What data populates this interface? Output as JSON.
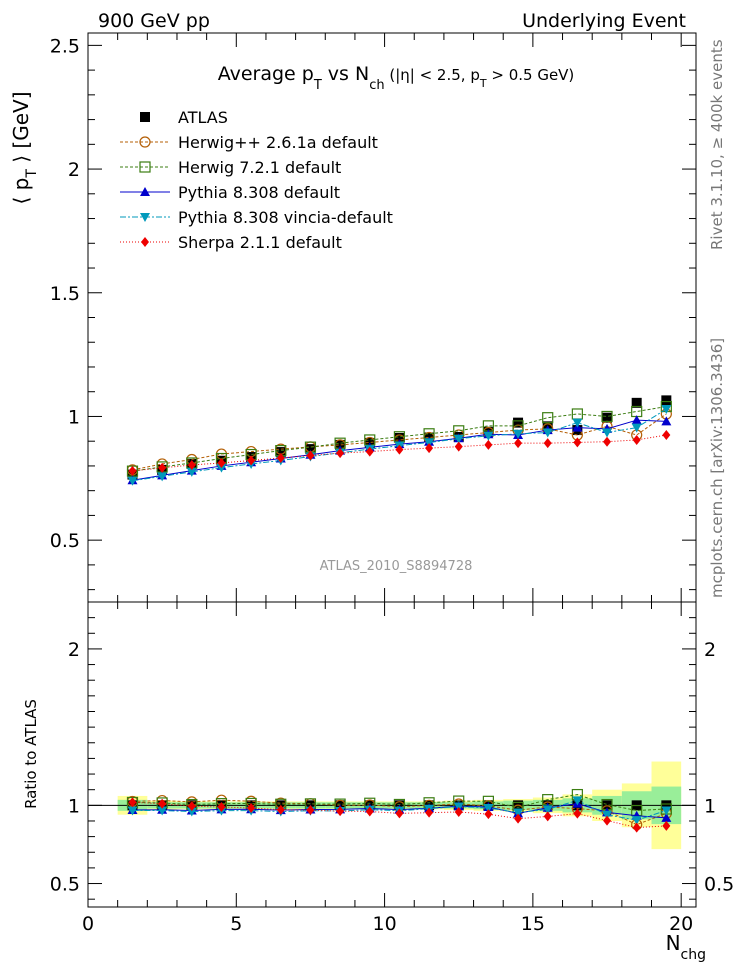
{
  "header": {
    "left": "900 GeV pp",
    "right": "Underlying Event"
  },
  "side": {
    "rivet": "Rivet 3.1.10, ≥ 400k events",
    "mcplots": "mcplots.cern.ch [arXiv:1306.3436]"
  },
  "chart_data": {
    "type": "line",
    "title_parts": {
      "a": "Average p",
      "sub_t": "T",
      "b": " vs N",
      "sub_ch": "ch",
      "c": " (|η| < 2.5, p",
      "sub_t2": "T",
      "d": " > 0.5 GeV)"
    },
    "analysis": "ATLAS_2010_S8894728",
    "ylabel": {
      "a": "⟨ p",
      "sub": "T",
      "b": " ⟩ [GeV]"
    },
    "ratio_ylabel": "Ratio to ATLAS",
    "xlabel": {
      "a": "N",
      "sub": "chg"
    },
    "xlim": [
      0,
      20.5
    ],
    "ylim": [
      0.25,
      2.55
    ],
    "ratio_ylim": [
      0.35,
      2.3
    ],
    "x_ticks": [
      "0",
      "5",
      "10",
      "15",
      "20"
    ],
    "y_ticks": [
      "0.5",
      "1",
      "1.5",
      "2",
      "2.5"
    ],
    "ratio_y_ticks": [
      "0.5",
      "1",
      "2"
    ],
    "x": [
      1.5,
      2.5,
      3.5,
      4.5,
      5.5,
      6.5,
      7.5,
      8.5,
      9.5,
      10.5,
      11.5,
      12.5,
      13.5,
      14.5,
      15.5,
      16.5,
      17.5,
      18.5,
      19.5
    ],
    "ratio_band": {
      "inner": [
        0.035,
        0.02,
        0.02,
        0.02,
        0.02,
        0.02,
        0.02,
        0.02,
        0.02,
        0.02,
        0.02,
        0.02,
        0.025,
        0.03,
        0.035,
        0.045,
        0.06,
        0.09,
        0.12
      ],
      "outer": [
        0.06,
        0.03,
        0.025,
        0.025,
        0.025,
        0.025,
        0.025,
        0.025,
        0.025,
        0.025,
        0.025,
        0.03,
        0.035,
        0.04,
        0.05,
        0.07,
        0.1,
        0.14,
        0.28
      ]
    },
    "series": [
      {
        "name": "ATLAS",
        "color": "#000000",
        "marker": "square-filled",
        "values": [
          0.765,
          0.784,
          0.808,
          0.821,
          0.836,
          0.856,
          0.868,
          0.885,
          0.893,
          0.913,
          0.915,
          0.917,
          0.938,
          0.975,
          0.96,
          0.945,
          0.995,
          1.055,
          1.065
        ]
      },
      {
        "name": "Herwig++ 2.6.1a default",
        "color": "#b45f06",
        "marker": "circle-open",
        "dash": "3,2",
        "values": [
          0.784,
          0.808,
          0.826,
          0.848,
          0.858,
          0.868,
          0.877,
          0.885,
          0.895,
          0.905,
          0.915,
          0.925,
          0.935,
          0.945,
          0.95,
          0.925,
          0.96,
          0.925,
          1.01
        ]
      },
      {
        "name": "Herwig 7.2.1 default",
        "color": "#3b7d12",
        "marker": "square-open",
        "dash": "3,2",
        "values": [
          0.779,
          0.796,
          0.812,
          0.83,
          0.846,
          0.862,
          0.876,
          0.892,
          0.905,
          0.918,
          0.93,
          0.942,
          0.962,
          0.962,
          0.995,
          1.01,
          1.0,
          1.02,
          1.04
        ]
      },
      {
        "name": "Pythia 8.308 default",
        "color": "#0000cc",
        "marker": "triangle-up",
        "dash": "",
        "values": [
          0.742,
          0.762,
          0.781,
          0.8,
          0.815,
          0.83,
          0.845,
          0.862,
          0.875,
          0.888,
          0.898,
          0.912,
          0.928,
          0.925,
          0.945,
          0.955,
          0.95,
          0.985,
          0.98
        ]
      },
      {
        "name": "Pythia 8.308 vincia-default",
        "color": "#0099bb",
        "marker": "triangle-down",
        "dash": "6,2,2,2",
        "values": [
          0.74,
          0.758,
          0.776,
          0.793,
          0.808,
          0.822,
          0.838,
          0.853,
          0.868,
          0.882,
          0.895,
          0.91,
          0.922,
          0.93,
          0.935,
          0.975,
          0.935,
          0.955,
          1.03
        ]
      },
      {
        "name": "Sherpa 2.1.1 default",
        "color": "#ee0000",
        "marker": "diamond",
        "dash": "1,2",
        "values": [
          0.78,
          0.792,
          0.804,
          0.812,
          0.822,
          0.832,
          0.842,
          0.852,
          0.858,
          0.866,
          0.872,
          0.878,
          0.885,
          0.892,
          0.892,
          0.895,
          0.898,
          0.905,
          0.925
        ]
      }
    ]
  }
}
